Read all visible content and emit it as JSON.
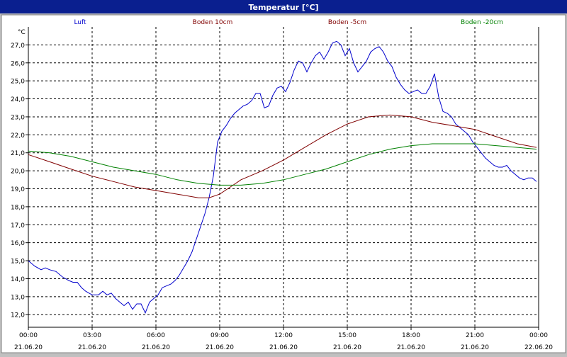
{
  "window": {
    "title": "Temperatur [°C]"
  },
  "chart_data": {
    "type": "line",
    "title": "Temperatur [°C]",
    "ylabel": "°C",
    "ylim": [
      11.3,
      28.0
    ],
    "xlim": [
      0,
      24
    ],
    "grid": true,
    "legend_position": "top",
    "y_ticks": [
      "12,0",
      "13,0",
      "14,0",
      "15,0",
      "16,0",
      "17,0",
      "18,0",
      "19,0",
      "20,0",
      "21,0",
      "22,0",
      "23,0",
      "24,0",
      "25,0",
      "26,0",
      "27,0"
    ],
    "x_ticks": [
      {
        "time": "00:00",
        "date": "21.06.20"
      },
      {
        "time": "03:00",
        "date": "21.06.20"
      },
      {
        "time": "06:00",
        "date": "21.06.20"
      },
      {
        "time": "09:00",
        "date": "21.06.20"
      },
      {
        "time": "12:00",
        "date": "21.06.20"
      },
      {
        "time": "15:00",
        "date": "21.06.20"
      },
      {
        "time": "18:00",
        "date": "21.06.20"
      },
      {
        "time": "21:00",
        "date": "21.06.20"
      },
      {
        "time": "00:00",
        "date": "22.06.20"
      }
    ],
    "series": [
      {
        "name": "Luft",
        "color": "#0000cc",
        "x": [
          0,
          0.3,
          0.6,
          0.8,
          1.0,
          1.3,
          1.6,
          1.9,
          2.1,
          2.3,
          2.5,
          2.7,
          3.0,
          3.3,
          3.5,
          3.7,
          3.9,
          4.1,
          4.3,
          4.5,
          4.7,
          4.9,
          5.1,
          5.3,
          5.5,
          5.7,
          5.9,
          6.1,
          6.3,
          6.5,
          6.7,
          6.9,
          7.1,
          7.3,
          7.5,
          7.7,
          7.9,
          8.1,
          8.3,
          8.5,
          8.7,
          8.9,
          9.1,
          9.3,
          9.5,
          9.7,
          9.9,
          10.1,
          10.3,
          10.5,
          10.7,
          10.9,
          11.1,
          11.3,
          11.5,
          11.7,
          11.9,
          12.1,
          12.3,
          12.5,
          12.7,
          12.9,
          13.1,
          13.3,
          13.5,
          13.7,
          13.9,
          14.1,
          14.3,
          14.5,
          14.7,
          14.9,
          15.1,
          15.3,
          15.5,
          15.7,
          15.9,
          16.1,
          16.3,
          16.5,
          16.7,
          16.9,
          17.1,
          17.3,
          17.5,
          17.7,
          17.9,
          18.1,
          18.3,
          18.5,
          18.7,
          18.9,
          19.1,
          19.3,
          19.5,
          19.7,
          19.9,
          20.1,
          20.3,
          20.5,
          20.7,
          20.9,
          21.1,
          21.3,
          21.5,
          21.7,
          21.9,
          22.1,
          22.3,
          22.5,
          22.7,
          22.9,
          23.1,
          23.3,
          23.5,
          23.7,
          23.9
        ],
        "y": [
          15.0,
          14.7,
          14.5,
          14.6,
          14.5,
          14.4,
          14.1,
          13.9,
          13.8,
          13.8,
          13.5,
          13.3,
          13.1,
          13.1,
          13.3,
          13.1,
          13.2,
          12.9,
          12.7,
          12.5,
          12.7,
          12.3,
          12.6,
          12.6,
          12.1,
          12.7,
          12.9,
          13.1,
          13.5,
          13.6,
          13.7,
          13.9,
          14.2,
          14.6,
          15.0,
          15.5,
          16.2,
          16.9,
          17.6,
          18.5,
          19.7,
          21.6,
          22.2,
          22.5,
          22.9,
          23.2,
          23.4,
          23.6,
          23.7,
          23.9,
          24.3,
          24.3,
          23.5,
          23.6,
          24.2,
          24.6,
          24.7,
          24.4,
          24.9,
          25.6,
          26.1,
          26.0,
          25.5,
          26.0,
          26.4,
          26.6,
          26.2,
          26.6,
          27.1,
          27.2,
          27.0,
          26.4,
          26.8,
          26.0,
          25.5,
          25.8,
          26.1,
          26.6,
          26.8,
          26.9,
          26.6,
          26.1,
          25.8,
          25.2,
          24.8,
          24.5,
          24.3,
          24.4,
          24.5,
          24.3,
          24.3,
          24.7,
          25.4,
          24.1,
          23.3,
          23.2,
          23.0,
          22.6,
          22.4,
          22.2,
          22.0,
          21.6,
          21.3,
          21.0,
          20.7,
          20.5,
          20.3,
          20.2,
          20.2,
          20.3,
          20.0,
          19.8,
          19.6,
          19.5,
          19.6,
          19.6,
          19.4
        ]
      },
      {
        "name": "Boden 10cm",
        "color": "#800000",
        "x": [
          0,
          1,
          2,
          3,
          4,
          5,
          6,
          7,
          8,
          8.5,
          9,
          9.5,
          10,
          11,
          12,
          13,
          14,
          15,
          16,
          17,
          18,
          19,
          20,
          21,
          22,
          23,
          23.9
        ],
        "y": [
          20.9,
          20.5,
          20.1,
          19.7,
          19.4,
          19.1,
          18.9,
          18.7,
          18.5,
          18.5,
          18.7,
          19.1,
          19.5,
          20.0,
          20.6,
          21.3,
          22.0,
          22.6,
          23.0,
          23.1,
          23.0,
          22.7,
          22.5,
          22.3,
          21.9,
          21.5,
          21.3
        ]
      },
      {
        "name": "Boden -5cm",
        "color": "#800000",
        "x": [],
        "y": []
      },
      {
        "name": "Boden -20cm",
        "color": "#008000",
        "x": [
          0,
          1,
          2,
          3,
          4,
          5,
          6,
          7,
          8,
          9,
          10,
          11,
          12,
          13,
          14,
          15,
          16,
          17,
          18,
          19,
          20,
          21,
          22,
          23,
          23.9
        ],
        "y": [
          21.1,
          21.0,
          20.8,
          20.5,
          20.2,
          20.0,
          19.8,
          19.5,
          19.3,
          19.2,
          19.2,
          19.3,
          19.5,
          19.8,
          20.1,
          20.5,
          20.9,
          21.2,
          21.4,
          21.5,
          21.5,
          21.5,
          21.4,
          21.3,
          21.2
        ]
      }
    ]
  }
}
